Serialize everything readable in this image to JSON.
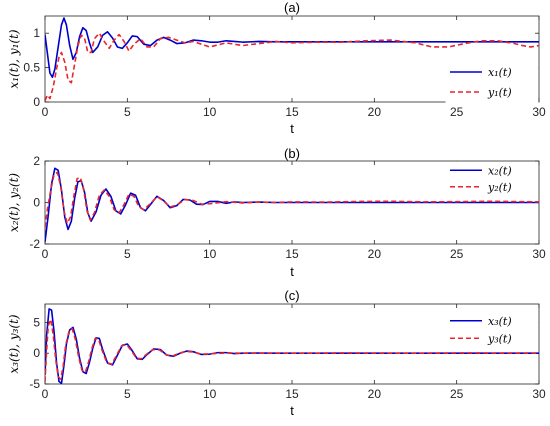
{
  "chart_data": [
    {
      "type": "line",
      "panel_title": "(a)",
      "ylabel": "x₁(t), y₁(t)",
      "xlabel": "t",
      "xlim": [
        0,
        30
      ],
      "ylim": [
        0,
        1.25
      ],
      "xticks": [
        0,
        5,
        10,
        15,
        20,
        25,
        30
      ],
      "yticks": [
        0,
        0.5,
        1
      ],
      "ytick_labels": [
        "0",
        "0.5",
        "1"
      ],
      "legend_position": "bottom-right",
      "series": [
        {
          "name": "x₁(t)",
          "color": "#0000CD",
          "dash": "solid",
          "x": [
            0,
            0.15,
            0.3,
            0.45,
            0.6,
            0.8,
            1.0,
            1.15,
            1.3,
            1.5,
            1.7,
            1.9,
            2.1,
            2.3,
            2.5,
            2.7,
            2.9,
            3.2,
            3.5,
            3.8,
            4.1,
            4.4,
            4.7,
            5.0,
            5.3,
            5.6,
            6.0,
            6.4,
            6.8,
            7.2,
            7.6,
            8.0,
            8.5,
            9.0,
            9.5,
            10.0,
            10.5,
            11.0,
            11.5,
            12.0,
            13.0,
            14.0,
            15.0,
            17.0,
            20.0,
            25.0,
            30.0
          ],
          "y": [
            0.98,
            0.7,
            0.42,
            0.36,
            0.48,
            0.8,
            1.12,
            1.22,
            1.12,
            0.82,
            0.62,
            0.72,
            0.95,
            1.08,
            1.04,
            0.86,
            0.72,
            0.8,
            0.97,
            1.02,
            0.93,
            0.8,
            0.78,
            0.86,
            0.96,
            0.95,
            0.84,
            0.82,
            0.9,
            0.94,
            0.9,
            0.85,
            0.86,
            0.9,
            0.89,
            0.87,
            0.87,
            0.89,
            0.88,
            0.87,
            0.88,
            0.875,
            0.875,
            0.875,
            0.875,
            0.875,
            0.875
          ]
        },
        {
          "name": "y₁(t)",
          "color": "#E8262B",
          "dash": "dashed",
          "x": [
            0,
            0.15,
            0.3,
            0.5,
            0.7,
            0.85,
            1.0,
            1.2,
            1.4,
            1.6,
            1.8,
            2.0,
            2.2,
            2.4,
            2.6,
            2.8,
            3.0,
            3.3,
            3.6,
            3.9,
            4.2,
            4.5,
            4.8,
            5.1,
            5.4,
            5.8,
            6.2,
            6.6,
            7.0,
            7.5,
            8.0,
            8.5,
            9.0,
            9.5,
            10.0,
            11.0,
            12.0,
            13.0,
            14.0,
            15.0,
            16.5,
            18.0,
            19.5,
            21.0,
            22.5,
            23.5,
            24.5,
            25.5,
            26.5,
            27.5,
            28.5,
            29.0,
            29.5,
            30.0
          ],
          "y": [
            0.02,
            0.1,
            0.05,
            0.22,
            0.48,
            0.65,
            0.72,
            0.58,
            0.32,
            0.28,
            0.55,
            0.82,
            0.97,
            0.93,
            0.72,
            0.72,
            0.92,
            1.0,
            0.88,
            0.78,
            0.9,
            0.98,
            0.88,
            0.74,
            0.84,
            0.92,
            0.8,
            0.8,
            0.92,
            0.94,
            0.9,
            0.86,
            0.88,
            0.84,
            0.8,
            0.86,
            0.82,
            0.85,
            0.88,
            0.86,
            0.87,
            0.87,
            0.89,
            0.9,
            0.86,
            0.8,
            0.8,
            0.85,
            0.89,
            0.89,
            0.85,
            0.82,
            0.8,
            0.82
          ]
        }
      ]
    },
    {
      "type": "line",
      "panel_title": "(b)",
      "ylabel": "x₂(t), y₂(t)",
      "xlabel": "t",
      "xlim": [
        0,
        30
      ],
      "ylim": [
        -2,
        2
      ],
      "xticks": [
        0,
        5,
        10,
        15,
        20,
        25,
        30
      ],
      "yticks": [
        -2,
        0,
        2
      ],
      "ytick_labels": [
        "-2",
        "0",
        "2"
      ],
      "legend_position": "top-right",
      "series": [
        {
          "name": "x₂(t)",
          "color": "#0000CD",
          "dash": "solid",
          "x": [
            0,
            0.2,
            0.4,
            0.6,
            0.8,
            1.0,
            1.2,
            1.4,
            1.6,
            1.8,
            2.0,
            2.2,
            2.4,
            2.6,
            2.8,
            3.1,
            3.4,
            3.7,
            4.0,
            4.3,
            4.6,
            4.9,
            5.2,
            5.5,
            5.8,
            6.1,
            6.4,
            6.8,
            7.2,
            7.6,
            8.0,
            8.4,
            8.8,
            9.2,
            9.6,
            10.0,
            10.5,
            11.0,
            11.5,
            12.0,
            13.0,
            14.0,
            15.0,
            20.0,
            25.0,
            30.0
          ],
          "y": [
            -1.9,
            -0.6,
            0.9,
            1.65,
            1.55,
            0.6,
            -0.7,
            -1.3,
            -0.9,
            0.2,
            1.0,
            1.05,
            0.5,
            -0.5,
            -0.9,
            -0.45,
            0.35,
            0.65,
            0.3,
            -0.4,
            -0.55,
            -0.1,
            0.45,
            0.35,
            -0.25,
            -0.4,
            -0.1,
            0.3,
            0.1,
            -0.25,
            -0.15,
            0.15,
            0.12,
            -0.08,
            -0.1,
            0.05,
            0.05,
            -0.04,
            0.03,
            0.0,
            0.02,
            0.0,
            0.0,
            0.0,
            0.0,
            0.0
          ]
        },
        {
          "name": "y₂(t)",
          "color": "#E8262B",
          "dash": "dashed",
          "x": [
            0,
            0.15,
            0.35,
            0.55,
            0.75,
            0.95,
            1.15,
            1.35,
            1.55,
            1.75,
            1.95,
            2.15,
            2.35,
            2.55,
            2.75,
            3.0,
            3.3,
            3.6,
            3.9,
            4.2,
            4.5,
            4.8,
            5.1,
            5.4,
            5.7,
            6.0,
            6.4,
            6.8,
            7.2,
            7.6,
            8.0,
            8.5,
            9.0,
            9.5,
            10.0,
            11.0,
            12.0,
            13.0,
            14.0,
            15.0,
            17.0,
            19.0,
            21.0,
            23.0,
            25.0,
            27.0,
            29.0,
            30.0
          ],
          "y": [
            -1.2,
            -0.3,
            0.6,
            1.35,
            1.45,
            0.8,
            -0.4,
            -1.0,
            -0.7,
            0.3,
            1.15,
            1.2,
            0.6,
            -0.4,
            -0.85,
            -0.5,
            0.35,
            0.6,
            0.3,
            -0.35,
            -0.5,
            -0.1,
            0.4,
            0.3,
            -0.2,
            -0.35,
            -0.05,
            0.28,
            0.08,
            -0.22,
            -0.12,
            0.14,
            0.1,
            -0.08,
            -0.06,
            0.04,
            -0.02,
            0.02,
            0.0,
            0.03,
            0.02,
            0.05,
            0.06,
            0.03,
            0.04,
            0.06,
            0.04,
            0.03
          ]
        }
      ]
    },
    {
      "type": "line",
      "panel_title": "(c)",
      "ylabel": "x₃(t), y₃(t)",
      "xlabel": "t",
      "xlim": [
        0,
        30
      ],
      "ylim": [
        -5,
        8
      ],
      "xticks": [
        0,
        5,
        10,
        15,
        20,
        25,
        30
      ],
      "yticks": [
        -5,
        0,
        5
      ],
      "ytick_labels": [
        "-5",
        "0",
        "5"
      ],
      "legend_position": "top-right",
      "series": [
        {
          "name": "x₃(t)",
          "color": "#0000CD",
          "dash": "solid",
          "x": [
            0,
            0.1,
            0.25,
            0.4,
            0.55,
            0.7,
            0.85,
            1.0,
            1.15,
            1.3,
            1.5,
            1.7,
            1.9,
            2.1,
            2.3,
            2.5,
            2.7,
            2.9,
            3.1,
            3.3,
            3.5,
            3.8,
            4.1,
            4.4,
            4.7,
            5.0,
            5.3,
            5.6,
            5.9,
            6.2,
            6.6,
            7.0,
            7.4,
            7.8,
            8.2,
            8.6,
            9.0,
            9.5,
            10.0,
            10.5,
            11.0,
            11.5,
            12.0,
            13.0,
            14.0,
            15.0,
            20.0,
            25.0,
            30.0
          ],
          "y": [
            -3.5,
            3.0,
            7.2,
            7.0,
            3.5,
            -1.5,
            -4.6,
            -4.9,
            -2.0,
            1.5,
            3.8,
            4.2,
            2.3,
            -0.8,
            -3.0,
            -3.3,
            -1.5,
            0.8,
            2.5,
            2.4,
            0.6,
            -1.6,
            -1.9,
            -0.3,
            1.3,
            1.5,
            0.4,
            -0.9,
            -1.0,
            -0.2,
            0.7,
            0.6,
            -0.3,
            -0.5,
            0.0,
            0.35,
            0.25,
            -0.2,
            -0.15,
            0.1,
            0.1,
            -0.05,
            0.0,
            0.03,
            0.0,
            0.0,
            0.0,
            0.0,
            0.0
          ]
        },
        {
          "name": "y₃(t)",
          "color": "#E8262B",
          "dash": "dashed",
          "x": [
            0,
            0.1,
            0.2,
            0.35,
            0.5,
            0.65,
            0.8,
            0.95,
            1.1,
            1.25,
            1.45,
            1.65,
            1.85,
            2.05,
            2.25,
            2.45,
            2.65,
            2.85,
            3.05,
            3.25,
            3.45,
            3.75,
            4.05,
            4.35,
            4.65,
            4.95,
            5.25,
            5.55,
            5.85,
            6.15,
            6.55,
            6.95,
            7.35,
            7.75,
            8.15,
            8.55,
            9.0,
            9.5,
            10.0,
            11.0,
            12.0,
            14.0,
            16.0,
            18.0,
            20.0,
            22.0,
            24.0,
            26.0,
            28.0,
            30.0
          ],
          "y": [
            -4.6,
            0.5,
            4.5,
            5.5,
            3.0,
            -1.0,
            -3.8,
            -4.2,
            -2.2,
            1.2,
            3.5,
            4.0,
            2.2,
            -0.7,
            -2.8,
            -3.1,
            -1.4,
            0.8,
            2.4,
            2.3,
            0.6,
            -1.5,
            -1.8,
            -0.3,
            1.2,
            1.4,
            0.4,
            -0.8,
            -0.9,
            -0.2,
            0.6,
            0.55,
            -0.25,
            -0.45,
            0.0,
            0.3,
            0.2,
            -0.15,
            -0.1,
            0.05,
            0.0,
            0.02,
            0.0,
            0.05,
            0.03,
            0.0,
            0.03,
            0.05,
            0.02,
            0.03
          ]
        }
      ]
    }
  ]
}
